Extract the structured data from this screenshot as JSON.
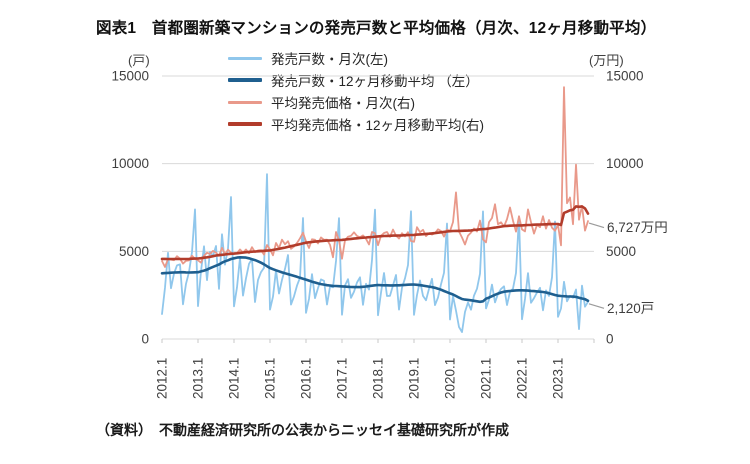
{
  "title": "図表1　首都圏新築マンションの発売戸数と平均価格（月次、12ヶ月移動平均）",
  "source": "（資料）　不動産経済研究所の公表からニッセイ基礎研究所が作成",
  "axes": {
    "left_unit": "(戸)",
    "right_unit": "(万円)",
    "y_ticks": [
      0,
      5000,
      10000,
      15000
    ],
    "y_max": 15000,
    "x_tick_labels": [
      "2012.1",
      "2013.1",
      "2014.1",
      "2015.1",
      "2016.1",
      "2017.1",
      "2018.1",
      "2019.1",
      "2020.1",
      "2021.1",
      "2022.1",
      "2023.1"
    ]
  },
  "annotations": {
    "price_latest": "6,727万円",
    "units_latest": "2,120戸"
  },
  "colors": {
    "units_monthly": "#90C7EC",
    "units_ma12": "#1F5F8F",
    "price_monthly": "#E9998A",
    "price_ma12": "#B23C2B",
    "gridline": "#D9D9D9",
    "tick": "#C8C8C8",
    "leader": "#9B9B9B",
    "axis_text": "#3F3F3F"
  },
  "legend": {
    "items": [
      {
        "label": "発売戸数・月次(左)",
        "color": "#90C7EC",
        "thickness": 3
      },
      {
        "label": "発売戸数・12ヶ月移動平均 （左）",
        "color": "#1F5F8F",
        "thickness": 3.5
      },
      {
        "label": "平均発売価格・月次(右)",
        "color": "#E9998A",
        "thickness": 3
      },
      {
        "label": "平均発売価格・12ヶ月移動平均(右)",
        "color": "#B23C2B",
        "thickness": 3.5
      }
    ]
  },
  "chart_data": {
    "type": "line",
    "x_start": "2012.1",
    "x_frequency": "monthly",
    "x_axis_end_tick": "2024.1",
    "grid": "horizontal-only",
    "legend_position": "top",
    "left_axis": {
      "label": "戸",
      "range": [
        0,
        15000
      ]
    },
    "right_axis": {
      "label": "万円",
      "range": [
        0,
        15000
      ]
    },
    "series": [
      {
        "name": "発売戸数・月次(左)",
        "axis": "left",
        "role": "monthly",
        "color": "#90C7EC",
        "values": [
          1427,
          2931,
          4914,
          2900,
          3732,
          4201,
          4254,
          1977,
          3148,
          3818,
          4962,
          7389,
          1875,
          3865,
          5289,
          3358,
          4967,
          4744,
          5306,
          2862,
          5970,
          4246,
          5152,
          8101,
          1865,
          2947,
          4641,
          2473,
          3461,
          4284,
          4563,
          2110,
          3363,
          3818,
          4058,
          9400,
          1679,
          2416,
          3927,
          2593,
          3376,
          3996,
          4785,
          1963,
          2430,
          3048,
          3496,
          6901,
          1494,
          2286,
          3693,
          2331,
          2903,
          3400,
          3317,
          1966,
          2990,
          2949,
          4448,
          6897,
          1384,
          3057,
          3408,
          2342,
          2700,
          3223,
          3517,
          1951,
          3148,
          2817,
          4508,
          7379,
          1355,
          2643,
          3767,
          2450,
          2462,
          3059,
          3653,
          1676,
          2926,
          3461,
          4217,
          7286,
          1379,
          2509,
          3337,
          2457,
          2206,
          2863,
          3431,
          1932,
          2359,
          3121,
          3777,
          6587,
          1111,
          2454,
          1615,
          686,
          393,
          1543,
          2083,
          1669,
          2477,
          2869,
          3727,
          7280,
          1745,
          2243,
          3103,
          2089,
          2578,
          2851,
          3003,
          1940,
          2684,
          2872,
          3772,
          6989,
          1128,
          2287,
          3760,
          2062,
          2333,
          2652,
          2920,
          1639,
          2771,
          2458,
          3518,
          6699,
          1268,
          1737,
          3262,
          2150,
          2462,
          2350,
          2821,
          563,
          3043,
          1843,
          2120
        ]
      },
      {
        "name": "発売戸数・12ヶ月移動平均 （左）",
        "axis": "left",
        "role": "ma12",
        "color": "#1F5F8F",
        "values": [
          3750,
          3760,
          3770,
          3780,
          3790,
          3800,
          3805,
          3810,
          3800,
          3795,
          3800,
          3805,
          3810,
          3855,
          3900,
          3960,
          4040,
          4110,
          4180,
          4250,
          4350,
          4430,
          4490,
          4560,
          4600,
          4640,
          4660,
          4655,
          4640,
          4600,
          4550,
          4500,
          4430,
          4350,
          4260,
          4150,
          4050,
          3980,
          3920,
          3860,
          3800,
          3750,
          3700,
          3650,
          3600,
          3550,
          3490,
          3440,
          3390,
          3330,
          3270,
          3220,
          3170,
          3130,
          3100,
          3070,
          3050,
          3030,
          3020,
          3010,
          3000,
          2990,
          2975,
          2965,
          2960,
          2958,
          2960,
          2975,
          2995,
          3015,
          3040,
          3060,
          3080,
          3070,
          3065,
          3060,
          3058,
          3058,
          3060,
          3065,
          3075,
          3085,
          3095,
          3100,
          3110,
          3090,
          3070,
          3045,
          3015,
          2990,
          2960,
          2920,
          2870,
          2810,
          2740,
          2670,
          2600,
          2540,
          2450,
          2360,
          2280,
          2250,
          2230,
          2210,
          2180,
          2150,
          2120,
          2150,
          2300,
          2360,
          2440,
          2520,
          2590,
          2650,
          2700,
          2720,
          2740,
          2755,
          2770,
          2775,
          2780,
          2770,
          2760,
          2745,
          2730,
          2715,
          2700,
          2680,
          2650,
          2610,
          2560,
          2510,
          2470,
          2450,
          2440,
          2430,
          2425,
          2420,
          2400,
          2350,
          2310,
          2270,
          2180
        ]
      },
      {
        "name": "平均発売価格・月次(右)",
        "axis": "right",
        "role": "monthly",
        "color": "#E9998A",
        "values": [
          4448,
          4105,
          4556,
          4529,
          4494,
          4724,
          4581,
          4302,
          4459,
          4491,
          4743,
          4573,
          4486,
          4360,
          4748,
          4919,
          4851,
          5026,
          4929,
          4750,
          5196,
          4845,
          5094,
          4928,
          4851,
          4902,
          5106,
          4935,
          5104,
          4888,
          5237,
          4948,
          5056,
          5071,
          4813,
          5361,
          5118,
          4775,
          5473,
          5180,
          5661,
          5409,
          5577,
          5145,
          5277,
          5476,
          5743,
          6061,
          5566,
          5190,
          5687,
          5656,
          5455,
          5796,
          5656,
          5662,
          5372,
          4660,
          6105,
          5649,
          4577,
          5628,
          5836,
          5887,
          6088,
          5881,
          5798,
          5906,
          5717,
          5388,
          6105,
          6037,
          5350,
          5883,
          6048,
          6101,
          5828,
          6239,
          5897,
          5731,
          6035,
          5849,
          6090,
          5591,
          5546,
          6379,
          6089,
          6229,
          5870,
          6037,
          5954,
          6037,
          6257,
          6158,
          5843,
          6238,
          6150,
          6669,
          8360,
          6132,
          5790,
          5389,
          5896,
          6069,
          6305,
          6133,
          6751,
          5680,
          5508,
          6669,
          6903,
          7680,
          6541,
          6655,
          6418,
          6838,
          7500,
          6750,
          6123,
          7000,
          6250,
          6137,
          7390,
          6660,
          6011,
          6509,
          6379,
          7000,
          6297,
          6787,
          6346,
          6178,
          6510,
          5343,
          14360,
          7747,
          8068,
          6550,
          9940,
          6806,
          7590,
          6180,
          6727
        ]
      },
      {
        "name": "平均発売価格・12ヶ月移動平均(右)",
        "axis": "right",
        "role": "ma12",
        "color": "#B23C2B",
        "values": [
          4570,
          4568,
          4565,
          4562,
          4560,
          4560,
          4560,
          4562,
          4565,
          4570,
          4578,
          4585,
          4590,
          4610,
          4635,
          4660,
          4690,
          4725,
          4760,
          4780,
          4800,
          4820,
          4845,
          4860,
          4870,
          4890,
          4910,
          4930,
          4950,
          4965,
          4980,
          4990,
          5000,
          5015,
          5030,
          5040,
          5050,
          5080,
          5110,
          5145,
          5180,
          5215,
          5250,
          5290,
          5330,
          5370,
          5410,
          5450,
          5490,
          5515,
          5535,
          5555,
          5570,
          5585,
          5600,
          5610,
          5620,
          5630,
          5640,
          5645,
          5650,
          5670,
          5690,
          5708,
          5725,
          5745,
          5760,
          5775,
          5790,
          5805,
          5820,
          5835,
          5850,
          5862,
          5872,
          5880,
          5888,
          5895,
          5900,
          5905,
          5910,
          5918,
          5925,
          5932,
          5940,
          5952,
          5965,
          5978,
          5992,
          6006,
          6020,
          6040,
          6060,
          6085,
          6110,
          6130,
          6150,
          6160,
          6165,
          6168,
          6170,
          6175,
          6180,
          6195,
          6215,
          6235,
          6255,
          6270,
          6280,
          6305,
          6330,
          6355,
          6380,
          6410,
          6440,
          6450,
          6460,
          6468,
          6474,
          6478,
          6480,
          6490,
          6500,
          6510,
          6518,
          6525,
          6530,
          6535,
          6540,
          6545,
          6552,
          6558,
          6560,
          6500,
          7190,
          7260,
          7340,
          7370,
          7560,
          7540,
          7560,
          7450,
          7150
        ]
      }
    ],
    "annotations": [
      {
        "text": "6,727万円",
        "series": "平均発売価格・月次(右)",
        "value": 6727
      },
      {
        "text": "2,120戸",
        "series": "発売戸数・月次(左)",
        "value": 2120
      }
    ],
    "title": "首都圏新築マンションの発売戸数と平均価格（月次、12ヶ月移動平均）"
  }
}
